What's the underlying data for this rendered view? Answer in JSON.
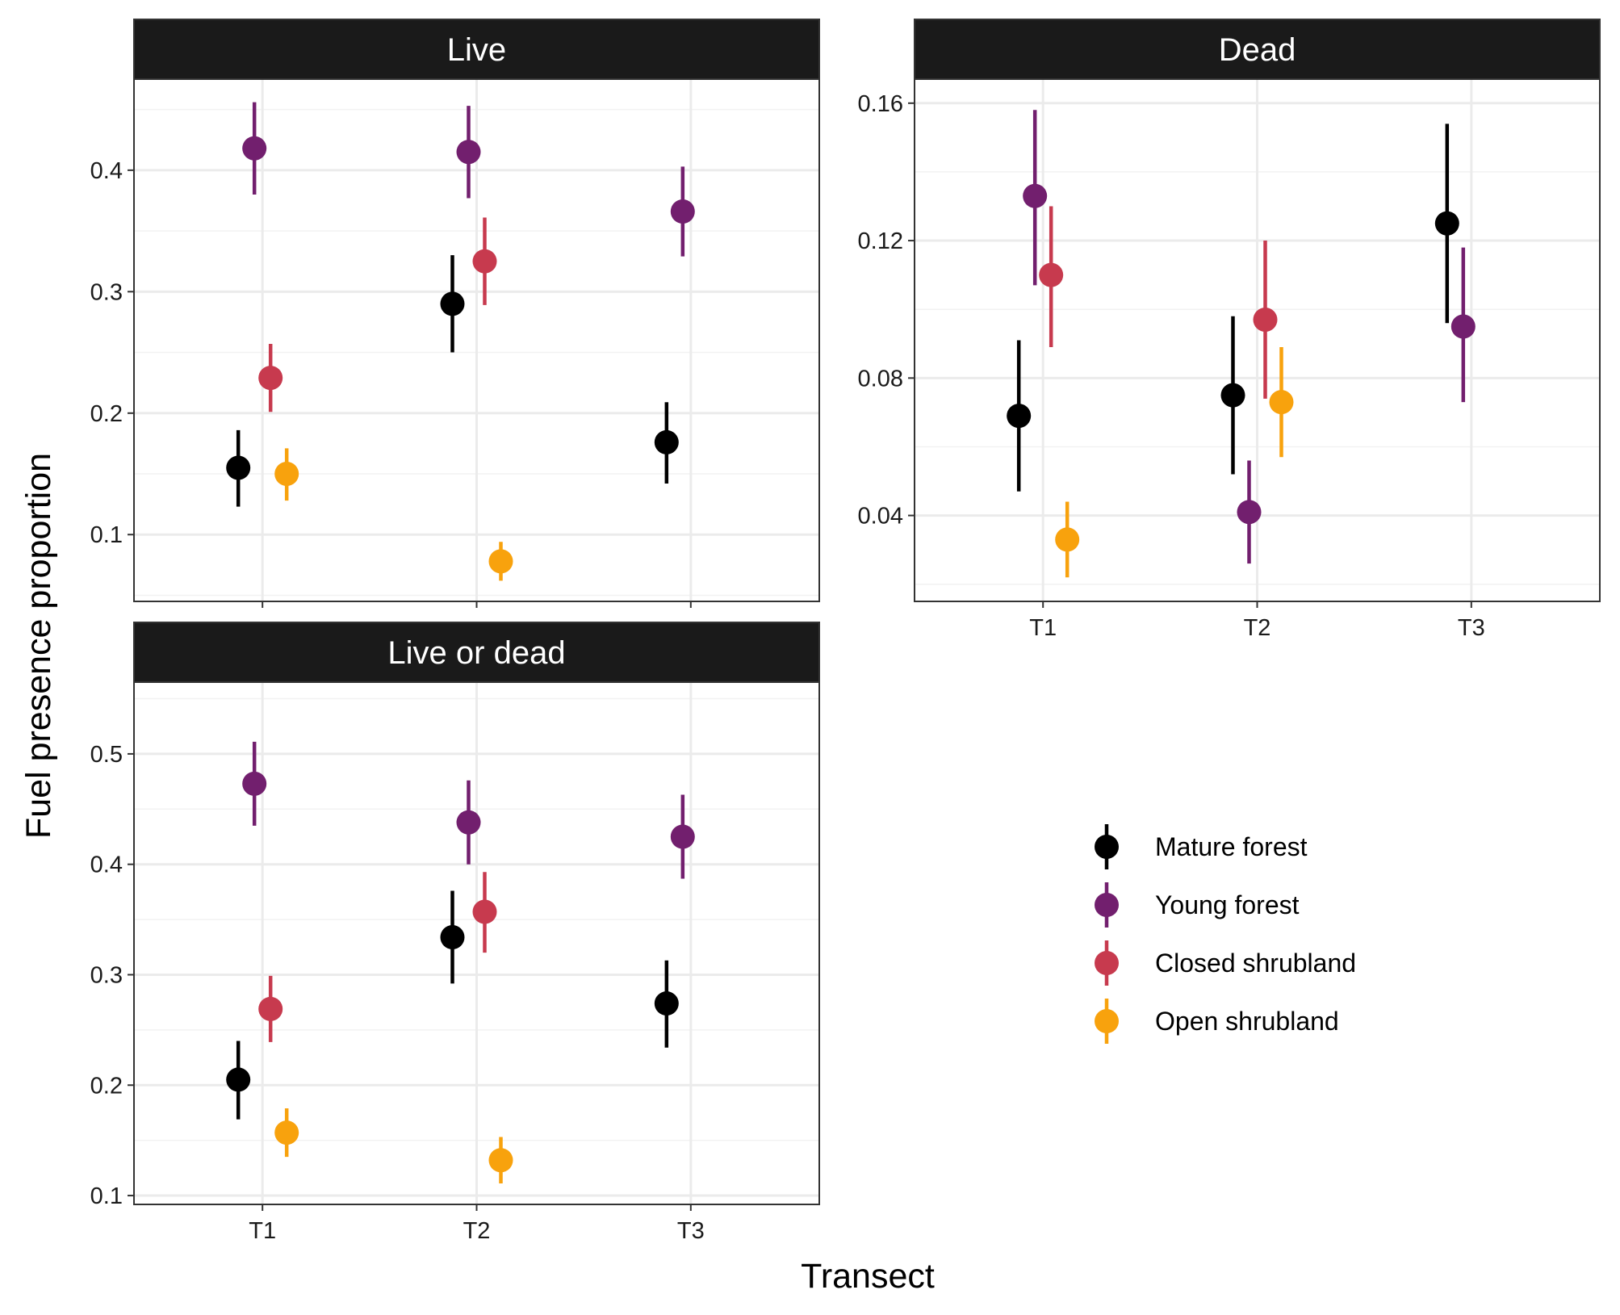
{
  "chart_data": {
    "type": "scatter",
    "xlabel": "Transect",
    "ylabel": "Fuel presence proportion",
    "categories": [
      "T1",
      "T2",
      "T3"
    ],
    "series_names": [
      "Mature forest",
      "Young forest",
      "Closed shrubland",
      "Open shrubland"
    ],
    "colors": {
      "Mature forest": "#000000",
      "Young forest": "#721F6E",
      "Closed shrubland": "#C73A4E",
      "Open shrubland": "#F8A20D"
    },
    "legend_position": "right",
    "grid": true,
    "panels": [
      {
        "title": "Live",
        "ylim": [
          0.045,
          0.475
        ],
        "yticks": [
          0.1,
          0.2,
          0.3,
          0.4
        ],
        "ytick_labels": [
          "0.1",
          "0.2",
          "0.3",
          "0.4"
        ],
        "series": [
          {
            "name": "Mature forest",
            "points": [
              {
                "x": "T1",
                "y": 0.155,
                "lo": 0.123,
                "hi": 0.186
              },
              {
                "x": "T2",
                "y": 0.29,
                "lo": 0.25,
                "hi": 0.33
              },
              {
                "x": "T3",
                "y": 0.176,
                "lo": 0.142,
                "hi": 0.209
              }
            ]
          },
          {
            "name": "Young forest",
            "points": [
              {
                "x": "T1",
                "y": 0.418,
                "lo": 0.38,
                "hi": 0.456
              },
              {
                "x": "T2",
                "y": 0.415,
                "lo": 0.377,
                "hi": 0.453
              },
              {
                "x": "T3",
                "y": 0.366,
                "lo": 0.329,
                "hi": 0.403
              }
            ]
          },
          {
            "name": "Closed shrubland",
            "points": [
              {
                "x": "T1",
                "y": 0.229,
                "lo": 0.201,
                "hi": 0.257
              },
              {
                "x": "T2",
                "y": 0.325,
                "lo": 0.289,
                "hi": 0.361
              }
            ]
          },
          {
            "name": "Open shrubland",
            "points": [
              {
                "x": "T1",
                "y": 0.15,
                "lo": 0.128,
                "hi": 0.171
              },
              {
                "x": "T2",
                "y": 0.078,
                "lo": 0.062,
                "hi": 0.094
              }
            ]
          }
        ]
      },
      {
        "title": "Dead",
        "ylim": [
          0.015,
          0.167
        ],
        "yticks": [
          0.04,
          0.08,
          0.12,
          0.16
        ],
        "ytick_labels": [
          "0.04",
          "0.08",
          "0.12",
          "0.16"
        ],
        "series": [
          {
            "name": "Mature forest",
            "points": [
              {
                "x": "T1",
                "y": 0.069,
                "lo": 0.047,
                "hi": 0.091
              },
              {
                "x": "T2",
                "y": 0.075,
                "lo": 0.052,
                "hi": 0.098
              },
              {
                "x": "T3",
                "y": 0.125,
                "lo": 0.096,
                "hi": 0.154
              }
            ]
          },
          {
            "name": "Young forest",
            "points": [
              {
                "x": "T1",
                "y": 0.133,
                "lo": 0.107,
                "hi": 0.158
              },
              {
                "x": "T2",
                "y": 0.041,
                "lo": 0.026,
                "hi": 0.056
              },
              {
                "x": "T3",
                "y": 0.095,
                "lo": 0.073,
                "hi": 0.118
              }
            ]
          },
          {
            "name": "Closed shrubland",
            "points": [
              {
                "x": "T1",
                "y": 0.11,
                "lo": 0.089,
                "hi": 0.13
              },
              {
                "x": "T2",
                "y": 0.097,
                "lo": 0.074,
                "hi": 0.12
              }
            ]
          },
          {
            "name": "Open shrubland",
            "points": [
              {
                "x": "T1",
                "y": 0.033,
                "lo": 0.022,
                "hi": 0.044
              },
              {
                "x": "T2",
                "y": 0.073,
                "lo": 0.057,
                "hi": 0.089
              }
            ]
          }
        ]
      },
      {
        "title": "Live or dead",
        "ylim": [
          0.092,
          0.565
        ],
        "yticks": [
          0.1,
          0.2,
          0.3,
          0.4,
          0.5
        ],
        "ytick_labels": [
          "0.1",
          "0.2",
          "0.3",
          "0.4",
          "0.5"
        ],
        "series": [
          {
            "name": "Mature forest",
            "points": [
              {
                "x": "T1",
                "y": 0.205,
                "lo": 0.169,
                "hi": 0.24
              },
              {
                "x": "T2",
                "y": 0.334,
                "lo": 0.292,
                "hi": 0.376
              },
              {
                "x": "T3",
                "y": 0.274,
                "lo": 0.234,
                "hi": 0.313
              }
            ]
          },
          {
            "name": "Young forest",
            "points": [
              {
                "x": "T1",
                "y": 0.473,
                "lo": 0.435,
                "hi": 0.511
              },
              {
                "x": "T2",
                "y": 0.438,
                "lo": 0.4,
                "hi": 0.476
              },
              {
                "x": "T3",
                "y": 0.425,
                "lo": 0.387,
                "hi": 0.463
              }
            ]
          },
          {
            "name": "Closed shrubland",
            "points": [
              {
                "x": "T1",
                "y": 0.269,
                "lo": 0.239,
                "hi": 0.299
              },
              {
                "x": "T2",
                "y": 0.357,
                "lo": 0.32,
                "hi": 0.393
              }
            ]
          },
          {
            "name": "Open shrubland",
            "points": [
              {
                "x": "T1",
                "y": 0.157,
                "lo": 0.135,
                "hi": 0.179
              },
              {
                "x": "T2",
                "y": 0.132,
                "lo": 0.111,
                "hi": 0.153
              }
            ]
          }
        ]
      }
    ]
  }
}
